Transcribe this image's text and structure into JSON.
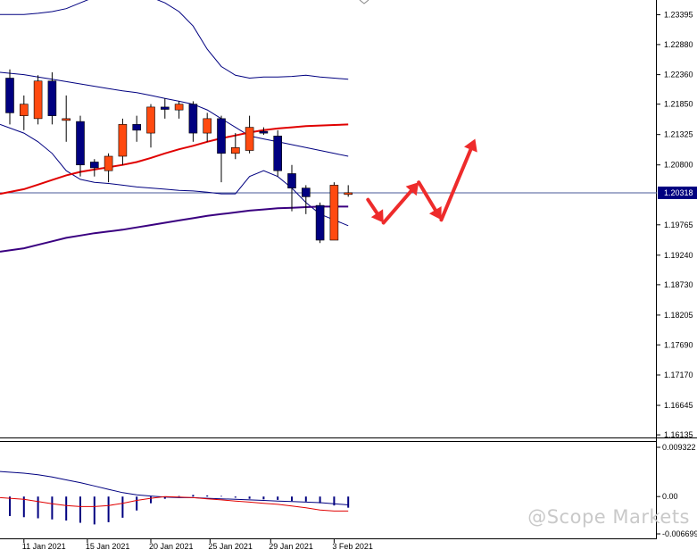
{
  "watermark": "@Scope Markets",
  "colors": {
    "bull": "#ff4a10",
    "bear": "#000080",
    "ma_red": "#e00000",
    "ma_purple": "#3a0080",
    "band": "#000080",
    "current_line": "#4a5a9a",
    "arrow": "#ee2b2b",
    "osc_bar": "#000080",
    "osc_signal": "#000080",
    "osc_line": "#e00000"
  },
  "chart_data": [
    {
      "type": "candlestick",
      "y_ticks": [
        "1.23395",
        "1.22880",
        "1.22360",
        "1.21850",
        "1.21325",
        "1.20800",
        "1.19765",
        "1.19240",
        "1.18730",
        "1.18205",
        "1.17690",
        "1.17170",
        "1.16645",
        "1.16135"
      ],
      "current_price_label": "1.20318",
      "current_price": 1.20318,
      "ylim": [
        1.1609,
        1.2365
      ],
      "x_labels": [
        "11 Jan 2021",
        "15 Jan 2021",
        "20 Jan 2021",
        "25 Jan 2021",
        "29 Jan 2021",
        "3 Feb 2021"
      ],
      "candles": [
        {
          "o": 1.223,
          "h": 1.2245,
          "l": 1.215,
          "c": 1.217
        },
        {
          "o": 1.2165,
          "h": 1.22,
          "l": 1.214,
          "c": 1.2185
        },
        {
          "o": 1.216,
          "h": 1.2235,
          "l": 1.215,
          "c": 1.2225
        },
        {
          "o": 1.2225,
          "h": 1.224,
          "l": 1.215,
          "c": 1.2165
        },
        {
          "o": 1.216,
          "h": 1.22,
          "l": 1.212,
          "c": 1.216
        },
        {
          "o": 1.2155,
          "h": 1.2165,
          "l": 1.206,
          "c": 1.208
        },
        {
          "o": 1.2085,
          "h": 1.209,
          "l": 1.206,
          "c": 1.2075
        },
        {
          "o": 1.207,
          "h": 1.21,
          "l": 1.205,
          "c": 1.2095
        },
        {
          "o": 1.2095,
          "h": 1.216,
          "l": 1.208,
          "c": 1.215
        },
        {
          "o": 1.215,
          "h": 1.2165,
          "l": 1.212,
          "c": 1.214
        },
        {
          "o": 1.2135,
          "h": 1.2185,
          "l": 1.211,
          "c": 1.218
        },
        {
          "o": 1.218,
          "h": 1.2195,
          "l": 1.216,
          "c": 1.2176
        },
        {
          "o": 1.2175,
          "h": 1.219,
          "l": 1.216,
          "c": 1.2185
        },
        {
          "o": 1.2185,
          "h": 1.219,
          "l": 1.212,
          "c": 1.2135
        },
        {
          "o": 1.2135,
          "h": 1.217,
          "l": 1.212,
          "c": 1.216
        },
        {
          "o": 1.216,
          "h": 1.2165,
          "l": 1.205,
          "c": 1.21
        },
        {
          "o": 1.21,
          "h": 1.2135,
          "l": 1.209,
          "c": 1.211
        },
        {
          "o": 1.2105,
          "h": 1.2165,
          "l": 1.21,
          "c": 1.2145
        },
        {
          "o": 1.2138,
          "h": 1.2145,
          "l": 1.2132,
          "c": 1.2136
        },
        {
          "o": 1.213,
          "h": 1.214,
          "l": 1.206,
          "c": 1.207
        },
        {
          "o": 1.2065,
          "h": 1.208,
          "l": 1.2,
          "c": 1.204
        },
        {
          "o": 1.204,
          "h": 1.2045,
          "l": 1.1995,
          "c": 1.2025
        },
        {
          "o": 1.201,
          "h": 1.2015,
          "l": 1.1945,
          "c": 1.195
        },
        {
          "o": 1.195,
          "h": 1.205,
          "l": 1.195,
          "c": 1.2045
        },
        {
          "o": 1.203,
          "h": 1.2045,
          "l": 1.2025,
          "c": 1.2032
        }
      ],
      "series": [
        {
          "values": [
            1.234,
            1.234,
            1.2342,
            1.2345,
            1.235,
            1.236,
            1.237,
            1.2375,
            1.2375,
            1.2375,
            1.237,
            1.236,
            1.2345,
            1.232,
            1.228,
            1.225,
            1.2235,
            1.223,
            1.2232,
            1.2232,
            1.2233,
            1.2235,
            1.2232,
            1.223,
            1.2228
          ]
        },
        {
          "values": [
            1.224,
            1.2236,
            1.2232,
            1.2228,
            1.2224,
            1.222,
            1.2216,
            1.2212,
            1.2208,
            1.2205,
            1.22,
            1.2195,
            1.219,
            1.2185,
            1.2175,
            1.216,
            1.2145,
            1.213,
            1.2125,
            1.212,
            1.2115,
            1.211,
            1.2105,
            1.21,
            1.2095
          ]
        },
        {
          "values": [
            1.215,
            1.2135,
            1.212,
            1.21,
            1.207,
            1.2055,
            1.205,
            1.2048,
            1.2045,
            1.2042,
            1.204,
            1.2038,
            1.2036,
            1.2035,
            1.2033,
            1.203,
            1.203,
            1.206,
            1.207,
            1.206,
            1.204,
            1.2015,
            1.1995,
            1.1985,
            1.1975
          ]
        },
        {
          "values": [
            1.203,
            1.2038,
            1.2046,
            1.2054,
            1.2062,
            1.2068,
            1.2072,
            1.2076,
            1.208,
            1.2085,
            1.2092,
            1.21,
            1.2107,
            1.2113,
            1.212,
            1.2126,
            1.2131,
            1.2136,
            1.214,
            1.2143,
            1.2145,
            1.2147,
            1.2148,
            1.2149,
            1.215
          ]
        },
        {
          "values": [
            1.193,
            1.1936,
            1.1942,
            1.1948,
            1.1954,
            1.1958,
            1.1962,
            1.1965,
            1.1968,
            1.1972,
            1.1976,
            1.198,
            1.1984,
            1.1988,
            1.1992,
            1.1995,
            1.1998,
            1.2001,
            1.2003,
            1.2005,
            1.2006,
            1.2007,
            1.2008,
            1.2008,
            1.2008
          ]
        }
      ],
      "projection": [
        {
          "x": 25.4,
          "y": 1.202
        },
        {
          "x": 26.5,
          "y": 1.198
        },
        {
          "x": 29.0,
          "y": 1.205
        },
        {
          "x": 30.6,
          "y": 1.1985
        },
        {
          "x": 33.0,
          "y": 1.2125
        }
      ]
    },
    {
      "type": "oscillator",
      "y_ticks": [
        "0.009322",
        "0.00",
        "-0.006699"
      ],
      "ylim": [
        -0.0075,
        0.0098
      ],
      "bars": [
        -0.0035,
        -0.0037,
        -0.0039,
        -0.0041,
        -0.0043,
        -0.0047,
        -0.005,
        -0.0046,
        -0.0038,
        -0.0025,
        -0.0012,
        -0.0004,
        0.0001,
        0.0003,
        0.0002,
        0.0001,
        -0.0002,
        -0.0004,
        -0.0005,
        -0.0006,
        -0.0008,
        -0.0009,
        -0.0012,
        -0.0016,
        -0.002
      ],
      "series": [
        {
          "values": [
            0.0045,
            0.0042,
            0.0039,
            0.0035,
            0.003,
            0.0025,
            0.0019,
            0.0013,
            0.0007,
            0.0003,
            0.0001,
            -0.0001,
            -0.0002,
            -0.0002,
            -0.0003,
            -0.0004,
            -0.0005,
            -0.0006,
            -0.0007,
            -0.0008,
            -0.0009,
            -0.001,
            -0.0011,
            -0.0013,
            -0.0015
          ]
        },
        {
          "values": [
            -0.0002,
            -0.0005,
            -0.0009,
            -0.0013,
            -0.0016,
            -0.0018,
            -0.0018,
            -0.0016,
            -0.0012,
            -0.0007,
            -0.0003,
            0.0,
            -0.0001,
            -0.0002,
            -0.0004,
            -0.0006,
            -0.0008,
            -0.001,
            -0.0012,
            -0.0014,
            -0.0017,
            -0.002,
            -0.0024,
            -0.0026,
            -0.0026
          ]
        }
      ]
    }
  ]
}
